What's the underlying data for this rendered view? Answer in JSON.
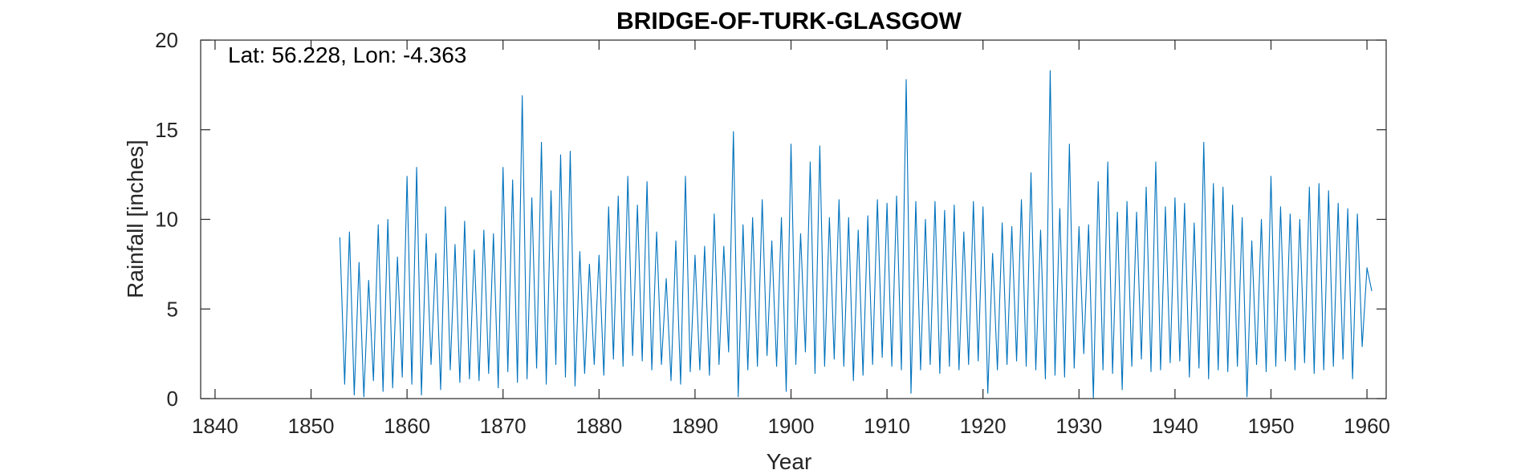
{
  "chart_data": {
    "type": "line",
    "title": "BRIDGE-OF-TURK-GLASGOW",
    "annotation": "Lat: 56.228, Lon: -4.363",
    "xlabel": "Year",
    "ylabel": "Rainfall [inches]",
    "xlim": [
      1838.5,
      1962
    ],
    "ylim": [
      0,
      20
    ],
    "xticks": [
      1840,
      1850,
      1860,
      1870,
      1880,
      1890,
      1900,
      1910,
      1920,
      1930,
      1940,
      1950,
      1960
    ],
    "yticks": [
      0,
      5,
      10,
      15,
      20
    ],
    "grid": false,
    "line_color": "#0072BD",
    "series": [
      {
        "x": [
          1853.0,
          1853.5,
          1854.0,
          1854.5,
          1855.0,
          1855.5,
          1856.0,
          1856.5,
          1857.0,
          1857.5,
          1858.0,
          1858.5,
          1859.0,
          1859.5,
          1860.0,
          1860.5,
          1861.0,
          1861.5,
          1862.0,
          1862.5,
          1863.0,
          1863.5,
          1864.0,
          1864.5,
          1865.0,
          1865.5,
          1866.0,
          1866.5,
          1867.0,
          1867.5,
          1868.0,
          1868.5,
          1869.0,
          1869.5,
          1870.0,
          1870.5,
          1871.0,
          1871.5,
          1872.0,
          1872.5,
          1873.0,
          1873.5,
          1874.0,
          1874.5,
          1875.0,
          1875.5,
          1876.0,
          1876.5,
          1877.0,
          1877.5,
          1878.0,
          1878.5,
          1879.0,
          1879.5,
          1880.0,
          1880.5,
          1881.0,
          1881.5,
          1882.0,
          1882.5,
          1883.0,
          1883.5,
          1884.0,
          1884.5,
          1885.0,
          1885.5,
          1886.0,
          1886.5,
          1887.0,
          1887.5,
          1888.0,
          1888.5,
          1889.0,
          1889.5,
          1890.0,
          1890.5,
          1891.0,
          1891.5,
          1892.0,
          1892.5,
          1893.0,
          1893.5,
          1894.0,
          1894.5,
          1895.0,
          1895.5,
          1896.0,
          1896.5,
          1897.0,
          1897.5,
          1898.0,
          1898.5,
          1899.0,
          1899.5,
          1900.0,
          1900.5,
          1901.0,
          1901.5,
          1902.0,
          1902.5,
          1903.0,
          1903.5,
          1904.0,
          1904.5,
          1905.0,
          1905.5,
          1906.0,
          1906.5,
          1907.0,
          1907.5,
          1908.0,
          1908.5,
          1909.0,
          1909.5,
          1910.0,
          1910.5,
          1911.0,
          1911.5,
          1912.0,
          1912.5,
          1913.0,
          1913.5,
          1914.0,
          1914.5,
          1915.0,
          1915.5,
          1916.0,
          1916.5,
          1917.0,
          1917.5,
          1918.0,
          1918.5,
          1919.0,
          1919.5,
          1920.0,
          1920.5,
          1921.0,
          1921.5,
          1922.0,
          1922.5,
          1923.0,
          1923.5,
          1924.0,
          1924.5,
          1925.0,
          1925.5,
          1926.0,
          1926.5,
          1927.0,
          1927.5,
          1928.0,
          1928.5,
          1929.0,
          1929.5,
          1930.0,
          1930.5,
          1931.0,
          1931.5,
          1932.0,
          1932.5,
          1933.0,
          1933.5,
          1934.0,
          1934.5,
          1935.0,
          1935.5,
          1936.0,
          1936.5,
          1937.0,
          1937.5,
          1938.0,
          1938.5,
          1939.0,
          1939.5,
          1940.0,
          1940.5,
          1941.0,
          1941.5,
          1942.0,
          1942.5,
          1943.0,
          1943.5,
          1944.0,
          1944.5,
          1945.0,
          1945.5,
          1946.0,
          1946.5,
          1947.0,
          1947.5,
          1948.0,
          1948.5,
          1949.0,
          1949.5,
          1950.0,
          1950.5,
          1951.0,
          1951.5,
          1952.0,
          1952.5,
          1953.0,
          1953.5,
          1954.0,
          1954.5,
          1955.0,
          1955.5,
          1956.0,
          1956.5,
          1957.0,
          1957.5,
          1958.0,
          1958.5,
          1959.0,
          1959.5,
          1960.0,
          1960.5
        ],
        "values": [
          9.0,
          0.8,
          9.3,
          0.2,
          7.6,
          0.1,
          6.6,
          1.0,
          9.7,
          0.4,
          10.0,
          0.6,
          7.9,
          1.2,
          12.4,
          0.8,
          12.9,
          0.2,
          9.2,
          1.9,
          8.1,
          0.5,
          10.7,
          1.6,
          8.6,
          0.9,
          9.9,
          1.1,
          8.3,
          1.0,
          9.4,
          1.4,
          9.2,
          0.6,
          12.9,
          1.5,
          12.2,
          0.9,
          16.9,
          1.1,
          11.2,
          1.7,
          14.3,
          0.8,
          11.6,
          1.9,
          13.6,
          1.2,
          13.8,
          0.7,
          8.2,
          1.4,
          7.5,
          1.9,
          8.0,
          1.3,
          10.7,
          2.2,
          11.3,
          1.8,
          12.4,
          2.4,
          10.8,
          2.1,
          12.1,
          1.6,
          9.3,
          1.9,
          6.7,
          1.0,
          8.8,
          0.8,
          12.4,
          1.5,
          8.0,
          1.6,
          8.5,
          1.3,
          10.3,
          1.9,
          8.5,
          2.6,
          14.9,
          0.1,
          9.7,
          1.6,
          10.1,
          1.8,
          11.1,
          2.4,
          8.8,
          1.8,
          10.1,
          0.4,
          14.2,
          1.9,
          9.2,
          2.6,
          13.2,
          1.4,
          14.1,
          1.8,
          10.1,
          2.2,
          11.1,
          1.8,
          10.1,
          1.0,
          9.4,
          1.3,
          10.2,
          1.9,
          11.1,
          2.3,
          10.9,
          1.8,
          11.3,
          1.6,
          17.8,
          0.3,
          11.0,
          1.6,
          10.0,
          1.9,
          11.0,
          1.4,
          10.5,
          1.8,
          10.8,
          1.6,
          9.3,
          1.9,
          11.0,
          2.1,
          10.7,
          0.3,
          8.1,
          1.6,
          9.8,
          1.9,
          9.6,
          2.1,
          11.1,
          1.8,
          12.6,
          1.6,
          9.4,
          1.1,
          18.3,
          1.3,
          10.6,
          1.2,
          14.2,
          1.7,
          9.6,
          2.5,
          9.7,
          0.0,
          12.1,
          1.6,
          13.2,
          1.4,
          10.4,
          0.5,
          11.0,
          1.8,
          10.4,
          2.2,
          11.8,
          1.5,
          13.2,
          1.6,
          10.7,
          2.0,
          11.2,
          2.1,
          10.9,
          1.2,
          9.8,
          1.7,
          14.3,
          1.1,
          12.0,
          1.6,
          11.8,
          1.5,
          10.8,
          1.8,
          10.1,
          0.1,
          8.8,
          1.9,
          10.0,
          1.5,
          12.4,
          1.8,
          10.7,
          2.1,
          10.3,
          1.6,
          10.0,
          2.0,
          11.8,
          1.4,
          12.0,
          1.6,
          11.6,
          1.8,
          10.9,
          2.2,
          10.6,
          1.1,
          10.3,
          2.9,
          7.3,
          6.0
        ]
      }
    ]
  }
}
